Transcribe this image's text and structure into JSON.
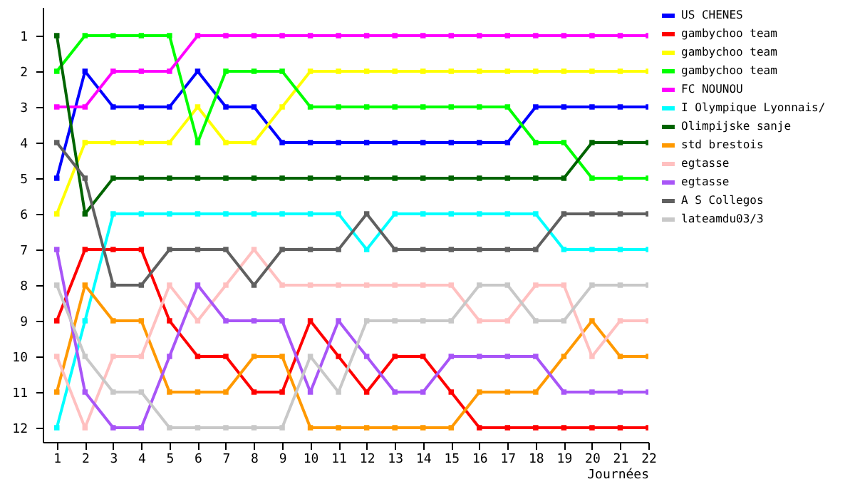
{
  "chart_data": {
    "type": "line",
    "xlabel": "Journées",
    "x": [
      1,
      2,
      3,
      4,
      5,
      6,
      7,
      8,
      9,
      10,
      11,
      12,
      13,
      14,
      15,
      16,
      17,
      18,
      19,
      20,
      21,
      22
    ],
    "xlim": [
      0.5,
      22
    ],
    "xticks": [
      1,
      2,
      3,
      4,
      5,
      6,
      7,
      8,
      9,
      10,
      11,
      12,
      13,
      14,
      15,
      16,
      17,
      18,
      19,
      20,
      21,
      22
    ],
    "ylim": [
      12.4,
      0.2
    ],
    "yticks": [
      1,
      2,
      3,
      4,
      5,
      6,
      7,
      8,
      9,
      10,
      11,
      12
    ],
    "grid": false,
    "legend": "right",
    "marker": "square",
    "line_style": "solid",
    "series": [
      {
        "name": "US CHENES",
        "color": "#0000ff",
        "values": [
          5,
          2,
          3,
          3,
          3,
          2,
          3,
          3,
          4,
          4,
          4,
          4,
          4,
          4,
          4,
          4,
          4,
          3,
          3,
          3,
          3,
          3
        ]
      },
      {
        "name": "gambychoo team",
        "color": "#ff0000",
        "values": [
          9,
          7,
          7,
          7,
          9,
          10,
          10,
          11,
          11,
          9,
          10,
          11,
          10,
          10,
          11,
          12,
          12,
          12,
          12,
          12,
          12,
          12
        ]
      },
      {
        "name": "gambychoo team",
        "color": "#ffff00",
        "values": [
          6,
          4,
          4,
          4,
          4,
          3,
          4,
          4,
          3,
          2,
          2,
          2,
          2,
          2,
          2,
          2,
          2,
          2,
          2,
          2,
          2,
          2
        ]
      },
      {
        "name": "gambychoo team",
        "color": "#00ff00",
        "values": [
          2,
          1,
          1,
          1,
          1,
          4,
          2,
          2,
          2,
          3,
          3,
          3,
          3,
          3,
          3,
          3,
          3,
          4,
          4,
          5,
          5,
          5
        ]
      },
      {
        "name": "FC NOUNOU",
        "color": "#ff00ff",
        "values": [
          3,
          3,
          2,
          2,
          2,
          1,
          1,
          1,
          1,
          1,
          1,
          1,
          1,
          1,
          1,
          1,
          1,
          1,
          1,
          1,
          1,
          1
        ]
      },
      {
        "name": "I Olympique Lyonnais/",
        "color": "#00ffff",
        "values": [
          12,
          9,
          6,
          6,
          6,
          6,
          6,
          6,
          6,
          6,
          6,
          7,
          6,
          6,
          6,
          6,
          6,
          6,
          7,
          7,
          7,
          7
        ]
      },
      {
        "name": "Olimpijske sanje",
        "color": "#006400",
        "values": [
          1,
          6,
          5,
          5,
          5,
          5,
          5,
          5,
          5,
          5,
          5,
          5,
          5,
          5,
          5,
          5,
          5,
          5,
          5,
          4,
          4,
          4
        ]
      },
      {
        "name": "std brestois",
        "color": "#ff9900",
        "values": [
          11,
          8,
          9,
          9,
          11,
          11,
          11,
          10,
          10,
          12,
          12,
          12,
          12,
          12,
          12,
          11,
          11,
          11,
          10,
          9,
          10,
          10
        ]
      },
      {
        "name": "egtasse",
        "color": "#ffc0c0",
        "values": [
          10,
          12,
          10,
          10,
          8,
          9,
          8,
          7,
          8,
          8,
          8,
          8,
          8,
          8,
          8,
          9,
          9,
          8,
          8,
          10,
          9,
          9
        ]
      },
      {
        "name": "egtasse",
        "color": "#a855f7",
        "values": [
          7,
          11,
          12,
          12,
          10,
          8,
          9,
          9,
          9,
          11,
          9,
          10,
          11,
          11,
          10,
          10,
          10,
          10,
          11,
          11,
          11,
          11
        ]
      },
      {
        "name": "A S Collegos",
        "color": "#606060",
        "values": [
          4,
          5,
          8,
          8,
          7,
          7,
          7,
          8,
          7,
          7,
          7,
          6,
          7,
          7,
          7,
          7,
          7,
          7,
          6,
          6,
          6,
          6
        ]
      },
      {
        "name": "lateamdu03/3",
        "color": "#c8c8c8",
        "values": [
          8,
          10,
          11,
          11,
          12,
          12,
          12,
          12,
          12,
          10,
          11,
          9,
          9,
          9,
          9,
          8,
          8,
          9,
          9,
          8,
          8,
          8
        ]
      }
    ]
  }
}
